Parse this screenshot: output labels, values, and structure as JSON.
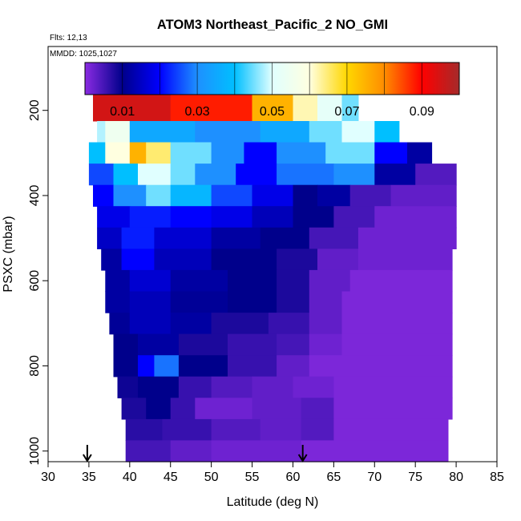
{
  "chart_data": {
    "type": "heatmap",
    "title": "ATOM3 Northeast_Pacific_2 NO_GMI",
    "notes": [
      "Flts: 12,13",
      "MMDD: 1025,1027"
    ],
    "xlabel": "Latitude (deg N)",
    "ylabel": "PSXC (mbar)",
    "xlim": [
      30,
      85
    ],
    "ylim": [
      1025,
      50
    ],
    "y_reversed": true,
    "xticks": [
      30,
      35,
      40,
      45,
      50,
      55,
      60,
      65,
      70,
      75,
      80,
      85
    ],
    "yticks": [
      200,
      400,
      600,
      800,
      1000
    ],
    "grid": false,
    "colorbar": {
      "placement": "top, inside plot",
      "range": [
        0,
        0.1
      ],
      "tick_values": [
        0.01,
        0.03,
        0.05,
        0.07,
        0.09
      ],
      "tick_labels": [
        "0.01",
        "0.03",
        "0.05",
        "0.07",
        "0.09"
      ],
      "colors": [
        "#8a2be2",
        "#00008b",
        "#0000ff",
        "#1e90ff",
        "#00bfff",
        "#e0ffff",
        "#ffffe0",
        "#ffd700",
        "#ff8c00",
        "#ff0000",
        "#a52a2a"
      ]
    },
    "arrows_at_latitude": [
      34.8,
      61.2
    ],
    "pressure_levels": [
      200,
      250,
      300,
      350,
      400,
      450,
      500,
      550,
      600,
      650,
      700,
      750,
      800,
      850,
      900,
      950,
      1000
    ],
    "layers": [
      {
        "p": 200,
        "lat_min": 35.5,
        "lat_max": 68,
        "breaks": [
          35.5,
          45,
          55,
          60,
          63,
          66,
          68
        ],
        "values": [
          0.095,
          0.088,
          0.075,
          0.062,
          0.052,
          0.045
        ]
      },
      {
        "p": 250,
        "lat_min": 36,
        "lat_max": 73,
        "breaks": [
          36,
          37,
          40,
          48,
          56,
          62,
          66,
          70,
          73
        ],
        "values": [
          0.048,
          0.055,
          0.035,
          0.03,
          0.035,
          0.045,
          0.05,
          0.04
        ]
      },
      {
        "p": 300,
        "lat_min": 35,
        "lat_max": 77,
        "breaks": [
          35,
          37,
          40,
          42,
          45,
          50,
          54,
          58,
          64,
          70,
          74,
          77
        ],
        "values": [
          0.04,
          0.06,
          0.075,
          0.065,
          0.045,
          0.03,
          0.02,
          0.03,
          0.045,
          0.02,
          0.012
        ]
      },
      {
        "p": 350,
        "lat_min": 35,
        "lat_max": 80,
        "breaks": [
          35,
          38,
          41,
          45,
          48,
          53,
          58,
          65,
          70,
          75,
          80
        ],
        "values": [
          0.025,
          0.04,
          0.05,
          0.045,
          0.03,
          0.02,
          0.028,
          0.03,
          0.012,
          0.004
        ]
      },
      {
        "p": 400,
        "lat_min": 35.5,
        "lat_max": 80,
        "breaks": [
          35.5,
          38,
          42,
          45,
          50,
          55,
          60,
          63,
          67,
          72,
          80
        ],
        "values": [
          0.02,
          0.03,
          0.045,
          0.038,
          0.025,
          0.018,
          0.01,
          0.012,
          0.005,
          0.003
        ]
      },
      {
        "p": 450,
        "lat_min": 36,
        "lat_max": 80,
        "breaks": [
          36,
          40,
          45,
          50,
          55,
          60,
          65,
          70,
          80
        ],
        "values": [
          0.018,
          0.022,
          0.02,
          0.018,
          0.014,
          0.01,
          0.005,
          0.002
        ]
      },
      {
        "p": 500,
        "lat_min": 36,
        "lat_max": 80,
        "breaks": [
          36,
          39,
          43,
          50,
          56,
          62,
          68,
          80
        ],
        "values": [
          0.015,
          0.022,
          0.016,
          0.012,
          0.01,
          0.005,
          0.002
        ]
      },
      {
        "p": 550,
        "lat_min": 36.5,
        "lat_max": 79.5,
        "breaks": [
          36.5,
          39,
          43,
          50,
          58,
          63,
          68,
          79.5
        ],
        "values": [
          0.012,
          0.02,
          0.014,
          0.01,
          0.008,
          0.003,
          0.002
        ]
      },
      {
        "p": 600,
        "lat_min": 37,
        "lat_max": 79.5,
        "breaks": [
          37,
          40,
          45,
          52,
          58,
          62,
          67,
          79.5
        ],
        "values": [
          0.012,
          0.016,
          0.012,
          0.01,
          0.008,
          0.003,
          0.001
        ]
      },
      {
        "p": 650,
        "lat_min": 37,
        "lat_max": 79.5,
        "breaks": [
          37,
          40,
          45,
          52,
          58,
          62,
          66,
          79.5
        ],
        "values": [
          0.012,
          0.014,
          0.011,
          0.01,
          0.008,
          0.003,
          0.001
        ]
      },
      {
        "p": 700,
        "lat_min": 37.5,
        "lat_max": 79.5,
        "breaks": [
          37.5,
          40,
          45,
          50,
          57,
          62,
          66,
          79.5
        ],
        "values": [
          0.011,
          0.014,
          0.012,
          0.008,
          0.006,
          0.003,
          0.001
        ]
      },
      {
        "p": 750,
        "lat_min": 38,
        "lat_max": 79.5,
        "breaks": [
          38,
          41,
          46,
          52,
          58,
          62,
          66,
          79.5
        ],
        "values": [
          0.01,
          0.012,
          0.008,
          0.006,
          0.005,
          0.002,
          0.001
        ]
      },
      {
        "p": 800,
        "lat_min": 38,
        "lat_max": 79.5,
        "breaks": [
          38,
          41,
          43,
          46,
          52,
          58,
          62,
          79.5
        ],
        "values": [
          0.01,
          0.02,
          0.028,
          0.01,
          0.006,
          0.003,
          0.001
        ]
      },
      {
        "p": 850,
        "lat_min": 38.5,
        "lat_max": 79.5,
        "breaks": [
          38.5,
          41,
          46,
          50,
          55,
          60,
          65,
          79.5
        ],
        "values": [
          0.009,
          0.01,
          0.006,
          0.004,
          0.003,
          0.002,
          0.001
        ]
      },
      {
        "p": 900,
        "lat_min": 39,
        "lat_max": 79.5,
        "breaks": [
          39,
          42,
          45,
          48,
          55,
          61,
          65,
          79.5
        ],
        "values": [
          0.008,
          0.01,
          0.006,
          0.002,
          0.003,
          0.004,
          0.001
        ]
      },
      {
        "p": 950,
        "lat_min": 39.5,
        "lat_max": 79,
        "breaks": [
          39.5,
          44,
          50,
          56,
          61,
          65,
          79
        ],
        "values": [
          0.007,
          0.006,
          0.004,
          0.003,
          0.004,
          0.001
        ]
      },
      {
        "p": 1000,
        "lat_min": 39.5,
        "lat_max": 79,
        "breaks": [
          39.5,
          45,
          50,
          56,
          61,
          79
        ],
        "values": [
          0.005,
          0.003,
          0.002,
          0.002,
          0.001
        ]
      }
    ]
  }
}
